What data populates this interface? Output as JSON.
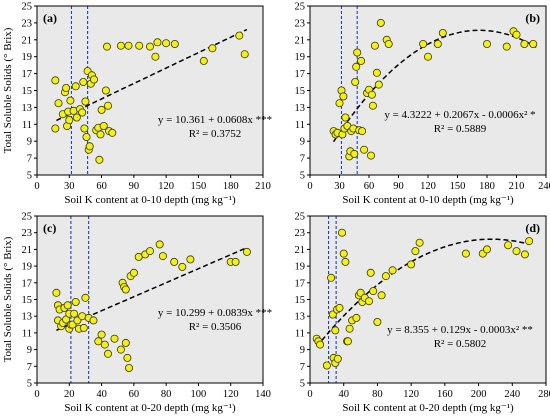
{
  "colors": {
    "panel_bg": "#e9e9e9",
    "point_fill": "#f2ef1c",
    "point_stroke": "#3a3a00",
    "vline": "#1f3fbf",
    "trend": "#000000"
  },
  "chart_data": [
    {
      "type": "scatter",
      "panel_label": "(a)",
      "xlabel": "Soil K content at 0-10 depth (mg kg⁻¹)",
      "ylabel": "Total Soluble Solids (° Brix)",
      "xlim": [
        0,
        210
      ],
      "ylim": [
        5,
        25
      ],
      "xticks": [
        0,
        30,
        60,
        90,
        120,
        150,
        180,
        210
      ],
      "yticks": [
        5,
        7,
        9,
        11,
        13,
        15,
        17,
        19,
        21,
        23,
        25
      ],
      "legend_position": "bottom-right",
      "vlines": [
        32,
        47
      ],
      "fit": {
        "kind": "linear",
        "coef": [
          10.361,
          0.0608
        ],
        "x_range": [
          18,
          195
        ]
      },
      "equation": "y = 10.361 + 0.0608x ***",
      "r2": "R² = 0.3752",
      "x": [
        17,
        17,
        20,
        24,
        26,
        27,
        28,
        29,
        30,
        31,
        34,
        36,
        37,
        40,
        42,
        43,
        44,
        45,
        46,
        47,
        48,
        49,
        50,
        51,
        53,
        55,
        57,
        58,
        59,
        60,
        62,
        64,
        65,
        66,
        67,
        70,
        78,
        85,
        95,
        105,
        110,
        112,
        120,
        128,
        155,
        163,
        188,
        193
      ],
      "y": [
        10.5,
        16.2,
        13.5,
        12.2,
        14.8,
        15.3,
        10.8,
        12.5,
        11.5,
        13.8,
        12.6,
        15.5,
        11.8,
        12.8,
        12.4,
        16.0,
        10.5,
        13.7,
        9.5,
        17.3,
        8.0,
        8.4,
        15.8,
        16.8,
        16.3,
        10.3,
        10.6,
        6.8,
        9.8,
        12.7,
        10.8,
        15.0,
        20.2,
        13.2,
        10.2,
        10.0,
        20.3,
        20.3,
        20.3,
        20.2,
        19.0,
        20.7,
        20.6,
        20.5,
        18.5,
        20.0,
        21.5,
        19.3
      ]
    },
    {
      "type": "scatter",
      "panel_label": "(b)",
      "xlabel": "Soil K content at 0-10 depth (mg kg⁻¹)",
      "ylabel": "",
      "xlim": [
        0,
        240
      ],
      "ylim": [
        5,
        25
      ],
      "xticks": [
        0,
        30,
        60,
        90,
        120,
        150,
        180,
        210,
        240
      ],
      "yticks": [
        5,
        7,
        9,
        11,
        13,
        15,
        17,
        19,
        21,
        23,
        25
      ],
      "legend_position": "center-right",
      "vlines": [
        32,
        48
      ],
      "fit": {
        "kind": "quadratic",
        "coef": [
          4.3222,
          0.2067,
          -0.0006
        ],
        "x_range": [
          24,
          230
        ]
      },
      "equation": "y = 4.3222 + 0.2067x - 0.0006x² *",
      "r2": "R² = 0.5889",
      "x": [
        24,
        26,
        28,
        30,
        32,
        33,
        34,
        35,
        36,
        38,
        40,
        41,
        42,
        44,
        45,
        46,
        47,
        48,
        50,
        52,
        53,
        55,
        58,
        60,
        62,
        63,
        64,
        66,
        68,
        70,
        72,
        78,
        80,
        115,
        120,
        130,
        135,
        180,
        200,
        207,
        210,
        218,
        227
      ],
      "y": [
        10.2,
        9.8,
        10.0,
        13.5,
        15.0,
        9.8,
        14.3,
        10.5,
        11.8,
        10.8,
        7.2,
        7.8,
        10.2,
        10.5,
        7.5,
        16.0,
        17.8,
        19.5,
        10.3,
        18.5,
        10.2,
        8.0,
        14.7,
        15.1,
        7.3,
        14.5,
        13.2,
        20.3,
        17.1,
        15.7,
        23.0,
        21.0,
        20.5,
        20.5,
        19.0,
        20.5,
        21.8,
        20.5,
        20.2,
        22.0,
        21.6,
        20.5,
        20.5
      ]
    },
    {
      "type": "scatter",
      "panel_label": "(c)",
      "xlabel": "Soil K content at 0-20 depth (mg kg⁻¹)",
      "ylabel": "Total Soluble Solids (° Brix)",
      "xlim": [
        0,
        140
      ],
      "ylim": [
        5,
        25
      ],
      "xticks": [
        0,
        20,
        40,
        60,
        80,
        100,
        120,
        140
      ],
      "yticks": [
        5,
        7,
        9,
        11,
        13,
        15,
        17,
        19,
        21,
        23,
        25
      ],
      "legend_position": "bottom-right",
      "vlines": [
        21,
        32
      ],
      "fit": {
        "kind": "linear",
        "coef": [
          10.299,
          0.0839
        ],
        "x_range": [
          12,
          130
        ]
      },
      "equation": "y = 10.299 + 0.0839x ***",
      "r2": "R² = 0.3506",
      "x": [
        12,
        13,
        13,
        14,
        15,
        16,
        17,
        18,
        19,
        20,
        20,
        21,
        22,
        23,
        24,
        25,
        26,
        28,
        29,
        30,
        32,
        35,
        38,
        40,
        42,
        44,
        48,
        52,
        53,
        54,
        55,
        55,
        56,
        57,
        58,
        60,
        63,
        67,
        70,
        76,
        78,
        85,
        90,
        95,
        120,
        123,
        130
      ],
      "y": [
        15.8,
        14.3,
        12.5,
        13.8,
        11.8,
        12.2,
        14.0,
        12.6,
        14.3,
        11.5,
        13.3,
        12.0,
        12.0,
        13.3,
        14.7,
        12.5,
        11.5,
        13.0,
        11.6,
        15.2,
        12.8,
        12.5,
        10.0,
        10.8,
        9.6,
        8.5,
        10.3,
        9.0,
        17.0,
        16.5,
        16.2,
        9.8,
        8.0,
        6.8,
        17.8,
        18.2,
        20.1,
        20.4,
        20.8,
        21.6,
        20.2,
        19.5,
        18.9,
        19.8,
        19.5,
        19.5,
        20.7
      ]
    },
    {
      "type": "scatter",
      "panel_label": "(d)",
      "xlabel": "Soil K content at 0-20 depth (mg kg⁻¹)",
      "ylabel": "",
      "xlim": [
        0,
        280
      ],
      "ylim": [
        5,
        25
      ],
      "xticks": [
        0,
        40,
        80,
        120,
        160,
        200,
        240,
        280
      ],
      "yticks": [
        5,
        7,
        9,
        11,
        13,
        15,
        17,
        19,
        21,
        23,
        25
      ],
      "legend_position": "bottom-right",
      "vlines": [
        22,
        31
      ],
      "fit": {
        "kind": "quadratic",
        "coef": [
          8.355,
          0.129,
          -0.0003
        ],
        "x_range": [
          8,
          260
        ]
      },
      "equation": "y = 8.355 + 0.129x - 0.0003x² **",
      "r2": "R² = 0.5802",
      "x": [
        8,
        10,
        12,
        20,
        25,
        27,
        28,
        30,
        30,
        32,
        33,
        35,
        38,
        40,
        42,
        44,
        45,
        47,
        50,
        55,
        58,
        60,
        62,
        65,
        70,
        72,
        75,
        80,
        85,
        90,
        98,
        120,
        125,
        130,
        185,
        205,
        210,
        235,
        245,
        255,
        260
      ],
      "y": [
        10.3,
        10.0,
        9.6,
        7.1,
        17.6,
        13.2,
        8.0,
        7.4,
        11.3,
        13.8,
        7.9,
        14.0,
        23.0,
        20.5,
        19.5,
        10.0,
        10.0,
        11.5,
        12.5,
        12.8,
        15.5,
        15.8,
        14.7,
        15.2,
        14.8,
        18.2,
        16.0,
        12.3,
        15.5,
        17.8,
        18.5,
        19.2,
        20.8,
        21.8,
        20.5,
        20.5,
        21.0,
        21.5,
        20.8,
        20.4,
        22.0
      ]
    }
  ]
}
